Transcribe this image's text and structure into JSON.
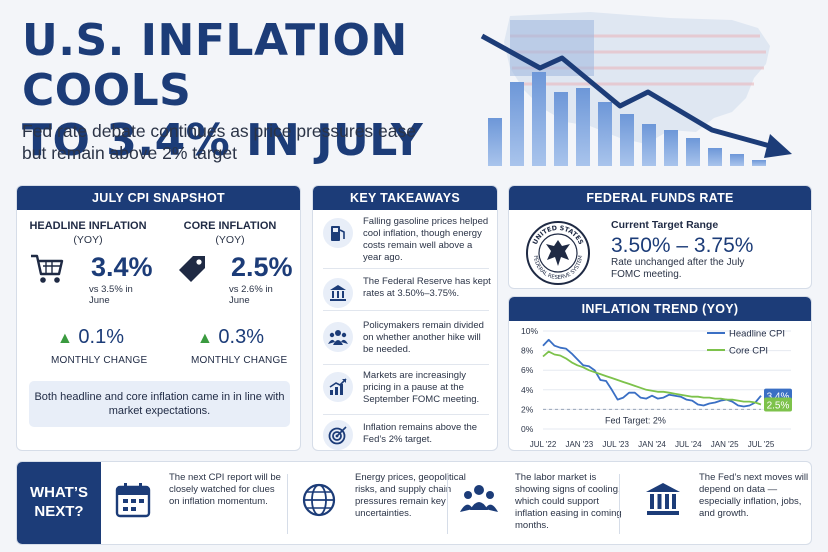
{
  "header": {
    "title_line1": "U.S. INFLATION COOLS",
    "title_line2": "TO 3.4% IN JULY",
    "subtitle_line1": "Fed rate debate continues as price pressures ease",
    "subtitle_line2": "but remain above 2% target"
  },
  "colors": {
    "navy": "#1c3c78",
    "blue": "#3a6fc4",
    "green": "#7dc24b",
    "monthly_up": "#3a9a3f"
  },
  "cpi_snapshot": {
    "title": "JULY CPI SNAPSHOT",
    "headline": {
      "label": "HEADLINE INFLATION",
      "sub": "(YOY)",
      "value": "3.4%",
      "vs": "vs 3.5% in June",
      "monthly": "0.1%",
      "monthly_label": "MONTHLY CHANGE",
      "icon": "shopping-cart-icon"
    },
    "core": {
      "label": "CORE INFLATION",
      "sub": "(YOY)",
      "value": "2.5%",
      "vs": "vs 2.6% in June",
      "monthly": "0.3%",
      "monthly_label": "MONTHLY CHANGE",
      "icon": "price-tag-icon"
    },
    "note": "Both headline and core inflation came in in line with market expectations."
  },
  "takeaways": {
    "title": "KEY TAKEAWAYS",
    "items": [
      {
        "icon": "gas-pump-icon",
        "text": "Falling gasoline prices helped cool inflation, though energy costs remain well above a year ago."
      },
      {
        "icon": "bank-icon",
        "text": "The Federal Reserve has kept rates at 3.50%–3.75%."
      },
      {
        "icon": "people-icon",
        "text": "Policymakers remain divided on whether another hike will be needed."
      },
      {
        "icon": "rising-chart-icon",
        "text": "Markets are increasingly pricing in a pause at the September FOMC meeting."
      },
      {
        "icon": "target-icon",
        "text": "Inflation remains above the Fed’s 2% target."
      }
    ]
  },
  "fed_funds": {
    "title": "FEDERAL FUNDS RATE",
    "label": "Current Target Range",
    "value": "3.50% – 3.75%",
    "note": "Rate unchanged after the July FOMC meeting.",
    "seal_text_top": "UNITED STATES",
    "seal_text_bottom": "FEDERAL RESERVE SYSTEM"
  },
  "chart_data": {
    "type": "line",
    "title": "INFLATION TREND",
    "title_suffix": "(YOY)",
    "x_labels": [
      "JUL '22",
      "JAN '23",
      "JUL '23",
      "JAN '24",
      "JUL '24",
      "JAN '25",
      "JUL '25"
    ],
    "ylim": [
      0,
      10
    ],
    "y_ticks": [
      "0%",
      "2%",
      "4%",
      "6%",
      "8%",
      "10%"
    ],
    "grid": true,
    "legend_position": "top-right",
    "series": [
      {
        "name": "Headline CPI",
        "color": "#3a6fc4",
        "end_label": "3.4%",
        "values": [
          8.5,
          9.1,
          8.5,
          8.3,
          8.2,
          7.7,
          7.1,
          6.5,
          6.4,
          6.0,
          5.0,
          4.9,
          4.0,
          3.0,
          3.2,
          3.7,
          3.7,
          3.2,
          3.1,
          3.4,
          3.1,
          3.2,
          3.5,
          3.4,
          3.3,
          3.0,
          2.9,
          2.5,
          2.4,
          2.6,
          2.7,
          2.9,
          3.0,
          2.8,
          2.4,
          2.3,
          2.4,
          2.7,
          3.4
        ]
      },
      {
        "name": "Core CPI",
        "color": "#7dc24b",
        "end_label": "2.5%",
        "values": [
          7.4,
          7.9,
          7.6,
          7.5,
          7.2,
          6.8,
          6.5,
          6.3,
          6.0,
          5.8,
          5.6,
          5.4,
          5.2,
          5.0,
          4.8,
          4.6,
          4.4,
          4.2,
          4.0,
          3.9,
          3.8,
          3.8,
          3.7,
          3.6,
          3.5,
          3.4,
          3.3,
          3.3,
          3.2,
          3.2,
          3.1,
          3.1,
          3.0,
          3.0,
          2.9,
          2.8,
          2.8,
          2.7,
          2.5
        ]
      }
    ],
    "target": {
      "value": 2,
      "label": "Fed Target: 2%"
    }
  },
  "whats_next": {
    "title_line1": "WHAT’S",
    "title_line2": "NEXT?",
    "items": [
      {
        "icon": "calendar-icon",
        "text": "The next CPI report will be closely watched for clues on inflation momentum."
      },
      {
        "icon": "globe-icon",
        "text": "Energy prices, geopolitical risks, and supply chain pressures remain key uncertainties."
      },
      {
        "icon": "workers-icon",
        "text": "The labor market is showing signs of cooling, which could support inflation easing in coming months."
      },
      {
        "icon": "bank-icon",
        "text": "The Fed’s next moves will depend on data — especially inflation, jobs, and growth."
      }
    ]
  }
}
